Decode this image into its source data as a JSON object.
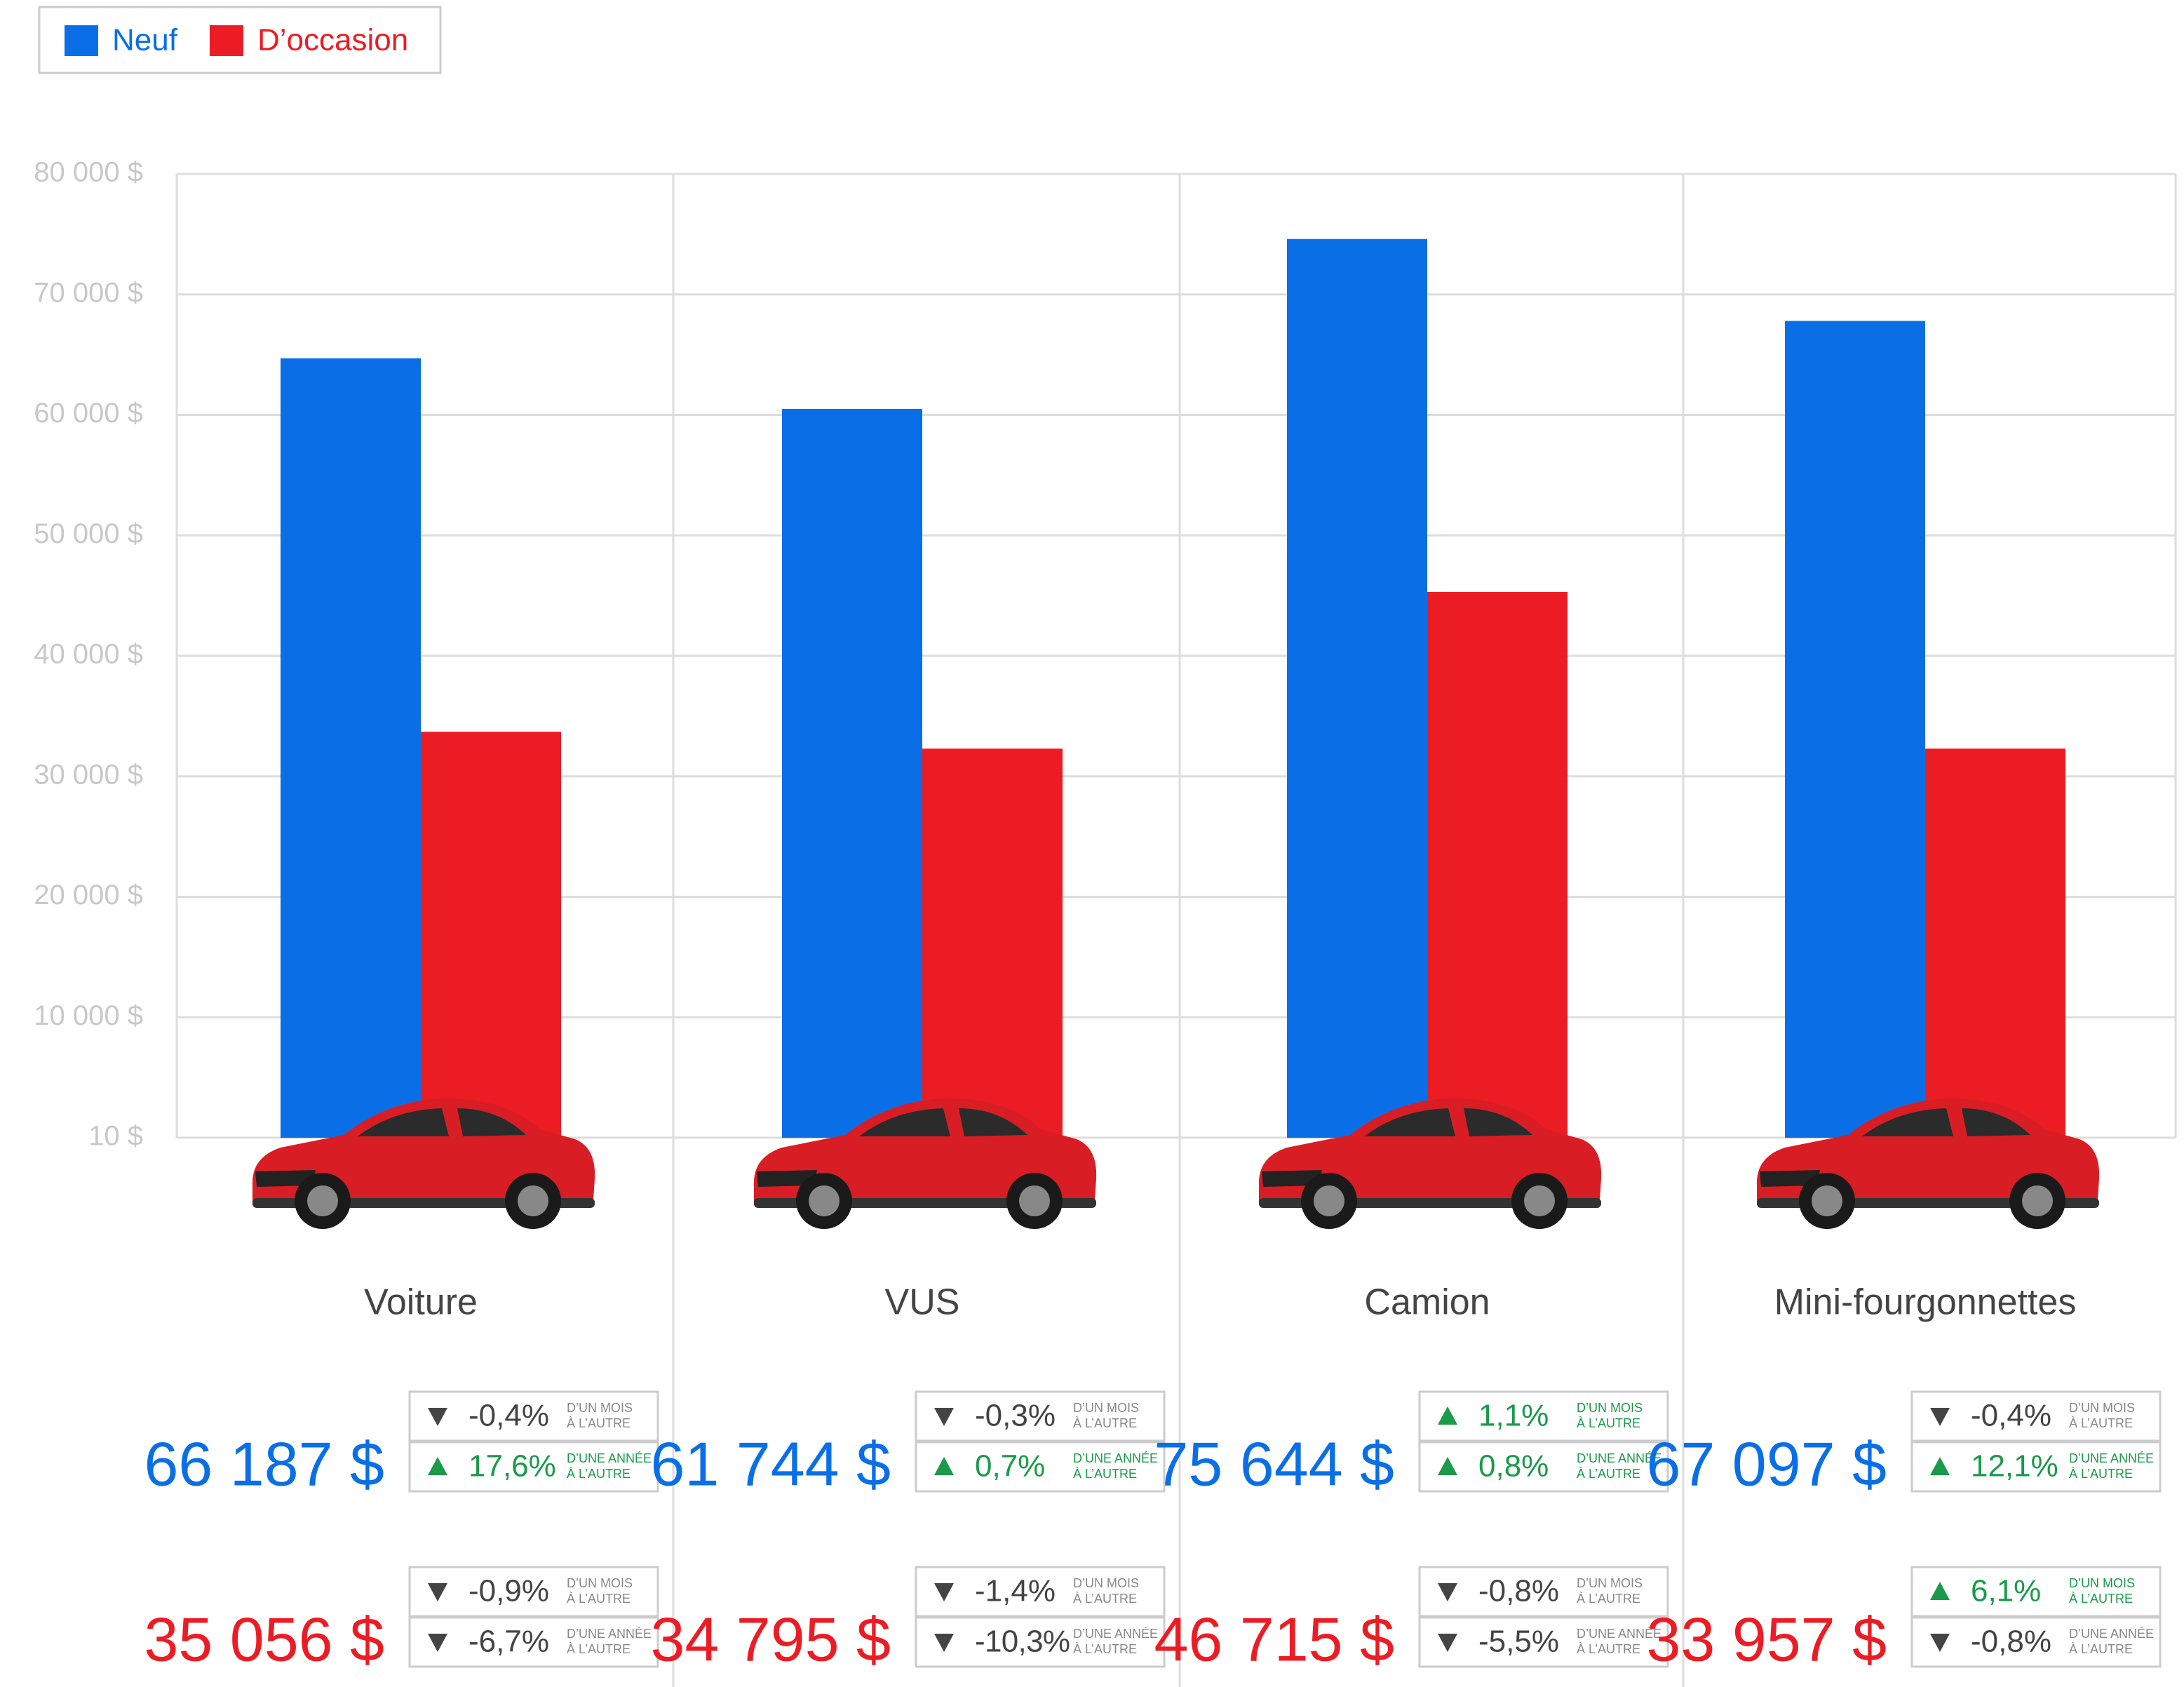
{
  "chart_data": {
    "type": "bar",
    "categories": [
      "Voiture",
      "VUS",
      "Camion",
      "Mini-fourgonnettes"
    ],
    "series": [
      {
        "name": "Neuf",
        "color": "#0a6fe6",
        "values": [
          64700,
          60500,
          74600,
          67800
        ]
      },
      {
        "name": "D’occasion",
        "color": "#ec1c24",
        "values": [
          33700,
          32300,
          45300,
          32300
        ]
      }
    ],
    "ylim": [
      0,
      80000
    ],
    "yticks": [
      {
        "value": 10,
        "label": "10 $"
      },
      {
        "value": 10000,
        "label": "10 000 $"
      },
      {
        "value": 20000,
        "label": "20 000 $"
      },
      {
        "value": 30000,
        "label": "30 000 $"
      },
      {
        "value": 40000,
        "label": "40 000 $"
      },
      {
        "value": 50000,
        "label": "50 000 $"
      },
      {
        "value": 60000,
        "label": "60 000 $"
      },
      {
        "value": 70000,
        "label": "70 000 $"
      },
      {
        "value": 80000,
        "label": "80 000 $"
      }
    ],
    "grid": true,
    "legend": "top-left"
  },
  "price_cards": [
    {
      "new": {
        "price": "66 187 $",
        "changes": [
          {
            "direction": "down",
            "value": "-0,4%",
            "label": [
              "D’UN MOIS",
              "À L’AUTRE"
            ]
          },
          {
            "direction": "up",
            "value": "17,6%",
            "label": [
              "D’UNE ANNÉE",
              "À L’AUTRE"
            ]
          }
        ]
      },
      "used": {
        "price": "35 056 $",
        "changes": [
          {
            "direction": "down",
            "value": "-0,9%",
            "label": [
              "D’UN MOIS",
              "À L’AUTRE"
            ]
          },
          {
            "direction": "down",
            "value": "-6,7%",
            "label": [
              "D’UNE ANNÉE",
              "À L’AUTRE"
            ]
          }
        ]
      }
    },
    {
      "new": {
        "price": "61 744 $",
        "changes": [
          {
            "direction": "down",
            "value": "-0,3%",
            "label": [
              "D’UN MOIS",
              "À L’AUTRE"
            ]
          },
          {
            "direction": "up",
            "value": "0,7%",
            "label": [
              "D’UNE ANNÉE",
              "À L’AUTRE"
            ]
          }
        ]
      },
      "used": {
        "price": "34 795 $",
        "changes": [
          {
            "direction": "down",
            "value": "-1,4%",
            "label": [
              "D’UN MOIS",
              "À L’AUTRE"
            ]
          },
          {
            "direction": "down",
            "value": "-10,3%",
            "label": [
              "D’UNE ANNÉE",
              "À L’AUTRE"
            ]
          }
        ]
      }
    },
    {
      "new": {
        "price": "75 644 $",
        "changes": [
          {
            "direction": "up",
            "value": "1,1%",
            "label": [
              "D’UN MOIS",
              "À L’AUTRE"
            ]
          },
          {
            "direction": "up",
            "value": "0,8%",
            "label": [
              "D’UNE ANNÉE",
              "À L’AUTRE"
            ]
          }
        ]
      },
      "used": {
        "price": "46 715 $",
        "changes": [
          {
            "direction": "down",
            "value": "-0,8%",
            "label": [
              "D’UN MOIS",
              "À L’AUTRE"
            ]
          },
          {
            "direction": "down",
            "value": "-5,5%",
            "label": [
              "D’UNE ANNÉE",
              "À L’AUTRE"
            ]
          }
        ]
      }
    },
    {
      "new": {
        "price": "67 097 $",
        "changes": [
          {
            "direction": "down",
            "value": "-0,4%",
            "label": [
              "D’UN MOIS",
              "À L’AUTRE"
            ]
          },
          {
            "direction": "up",
            "value": "12,1%",
            "label": [
              "D’UNE ANNÉE",
              "À L’AUTRE"
            ]
          }
        ]
      },
      "used": {
        "price": "33 957 $",
        "changes": [
          {
            "direction": "up",
            "value": "6,1%",
            "label": [
              "D’UN MOIS",
              "À L’AUTRE"
            ]
          },
          {
            "direction": "down",
            "value": "-0,8%",
            "label": [
              "D’UNE ANNÉE",
              "À L’AUTRE"
            ]
          }
        ]
      }
    }
  ]
}
